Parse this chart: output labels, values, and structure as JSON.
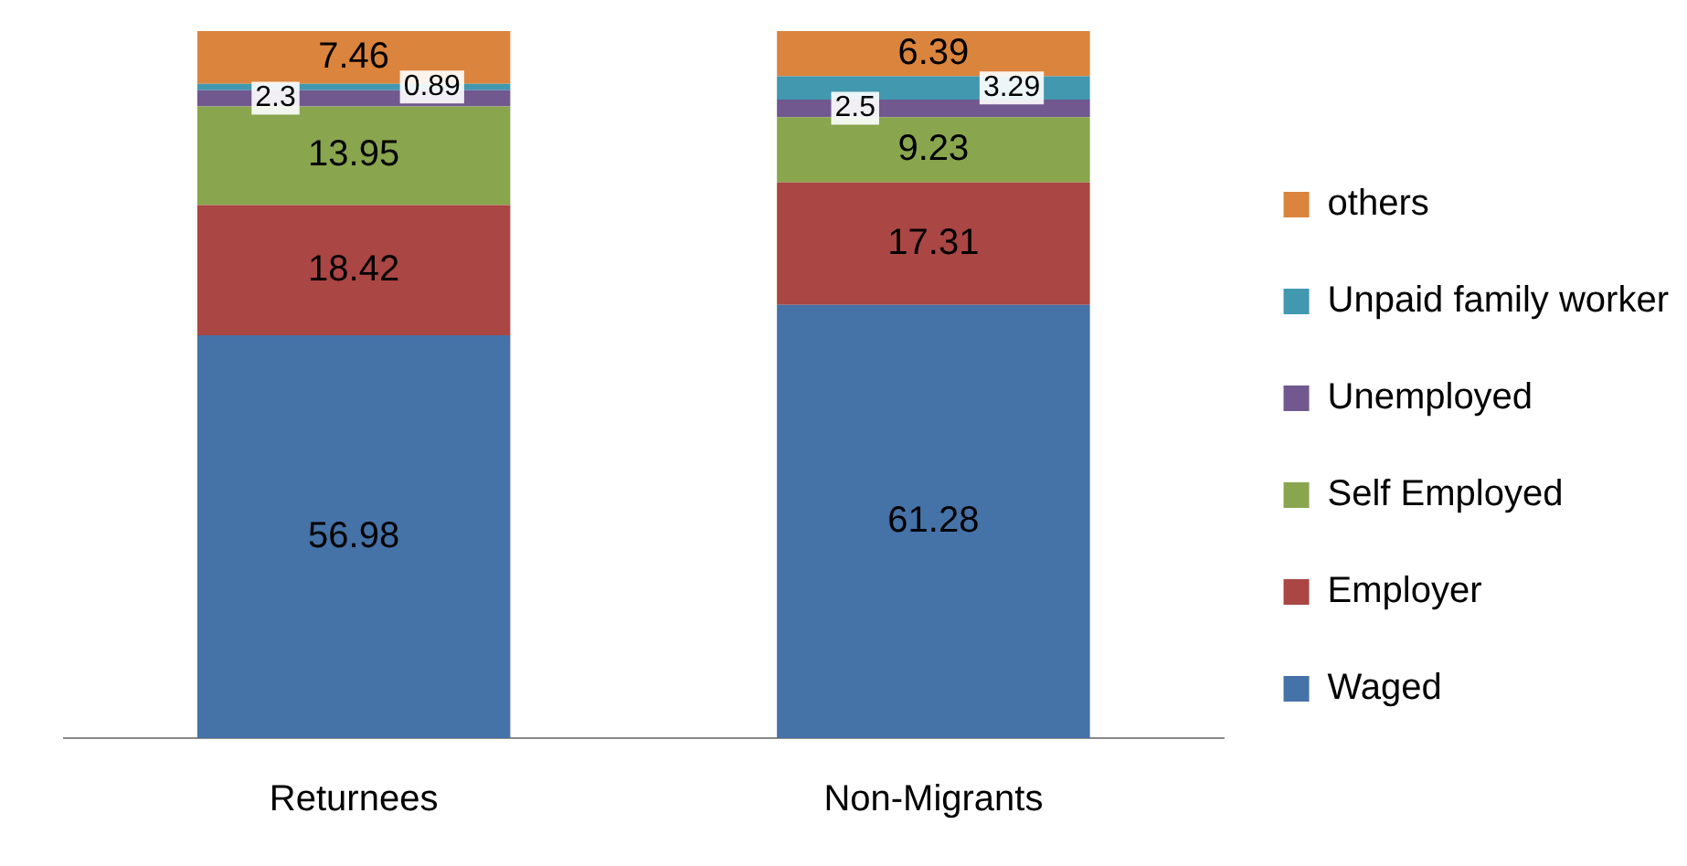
{
  "chart_data": {
    "type": "bar",
    "stacked": true,
    "categories": [
      "Returnees",
      "Non-Migrants"
    ],
    "series": [
      {
        "name": "Waged",
        "color": "#4572a7",
        "values": [
          56.98,
          61.28
        ]
      },
      {
        "name": "Employer",
        "color": "#aa4643",
        "values": [
          18.42,
          17.31
        ]
      },
      {
        "name": "Self Employed",
        "color": "#89a54e",
        "values": [
          13.95,
          9.23
        ]
      },
      {
        "name": "Unemployed",
        "color": "#71588f",
        "values": [
          2.3,
          2.5
        ]
      },
      {
        "name": "Unpaid family worker",
        "color": "#4198af",
        "values": [
          0.89,
          3.29
        ]
      },
      {
        "name": "others",
        "color": "#db843d",
        "values": [
          7.46,
          6.39
        ]
      }
    ],
    "ylim": [
      0,
      100
    ],
    "data_labels": true,
    "legend": "right",
    "tick_labels": "x",
    "grid": false
  }
}
